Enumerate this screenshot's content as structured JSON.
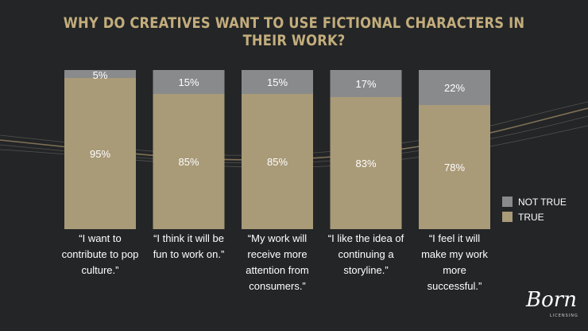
{
  "title": "WHY DO CREATIVES WANT TO USE FICTIONAL CHARACTERS IN THEIR WORK?",
  "logo": {
    "script": "Born",
    "sub": "LICENSING"
  },
  "colors": {
    "background": "#232527",
    "true": "#a99a78",
    "not_true": "#898a8c",
    "title": "#c3ad7c",
    "label": "#ffffff"
  },
  "chart_data": {
    "type": "bar",
    "stacked": true,
    "percent": true,
    "categories": [
      "“I want to contribute to pop culture.”",
      "“I think it will be fun to work on.”",
      "“My work will receive more attention from consumers.”",
      "“I like the idea of continuing a storyline.”",
      "“I feel it will make my work more successful.”"
    ],
    "category_lines": [
      [
        "“I want to",
        "contribute to pop",
        "culture.”"
      ],
      [
        "“I think it will be",
        "fun to work on.”"
      ],
      [
        "“My work will",
        "receive more",
        "attention from",
        "consumers.”"
      ],
      [
        "“I like the idea of",
        "continuing a",
        "storyline.”"
      ],
      [
        "“I feel it will",
        "make my work",
        "more",
        "successful.”"
      ]
    ],
    "series": [
      {
        "name": "TRUE",
        "values": [
          95,
          85,
          85,
          83,
          78
        ],
        "labels": [
          "95%",
          "85%",
          "85%",
          "83%",
          "78%"
        ]
      },
      {
        "name": "NOT TRUE",
        "values": [
          5,
          15,
          15,
          17,
          22
        ],
        "labels": [
          "5%",
          "15%",
          "15%",
          "17%",
          "22%"
        ]
      }
    ],
    "legend": [
      "NOT TRUE",
      "TRUE"
    ],
    "legend_position": "right",
    "ylim": [
      0,
      100
    ],
    "grid": false
  }
}
